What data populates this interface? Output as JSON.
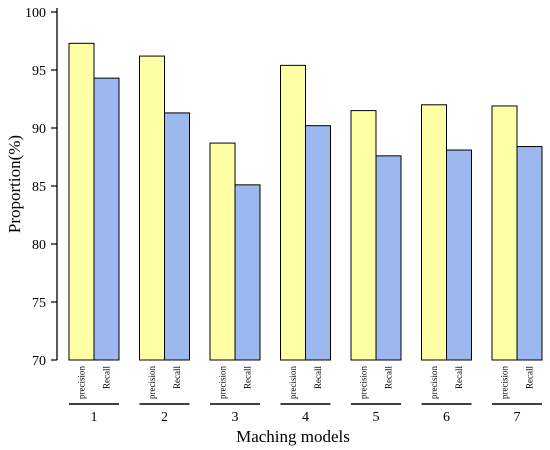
{
  "chart_data": {
    "type": "bar",
    "title": "",
    "xlabel": "Maching models",
    "ylabel": "Proportion(%)",
    "ylim": [
      70,
      100
    ],
    "yticks": [
      "70",
      "75",
      "80",
      "85",
      "90",
      "95",
      "100"
    ],
    "grid": false,
    "categories": [
      "1",
      "2",
      "3",
      "4",
      "5",
      "6",
      "7"
    ],
    "series": [
      {
        "name": "precision",
        "color": "#ffffa6",
        "values": [
          97.3,
          96.2,
          88.7,
          95.4,
          91.5,
          92.0,
          91.9
        ]
      },
      {
        "name": "Recall",
        "color": "#9db8ef",
        "values": [
          94.3,
          91.3,
          85.1,
          90.2,
          87.6,
          88.1,
          88.4
        ]
      }
    ]
  }
}
